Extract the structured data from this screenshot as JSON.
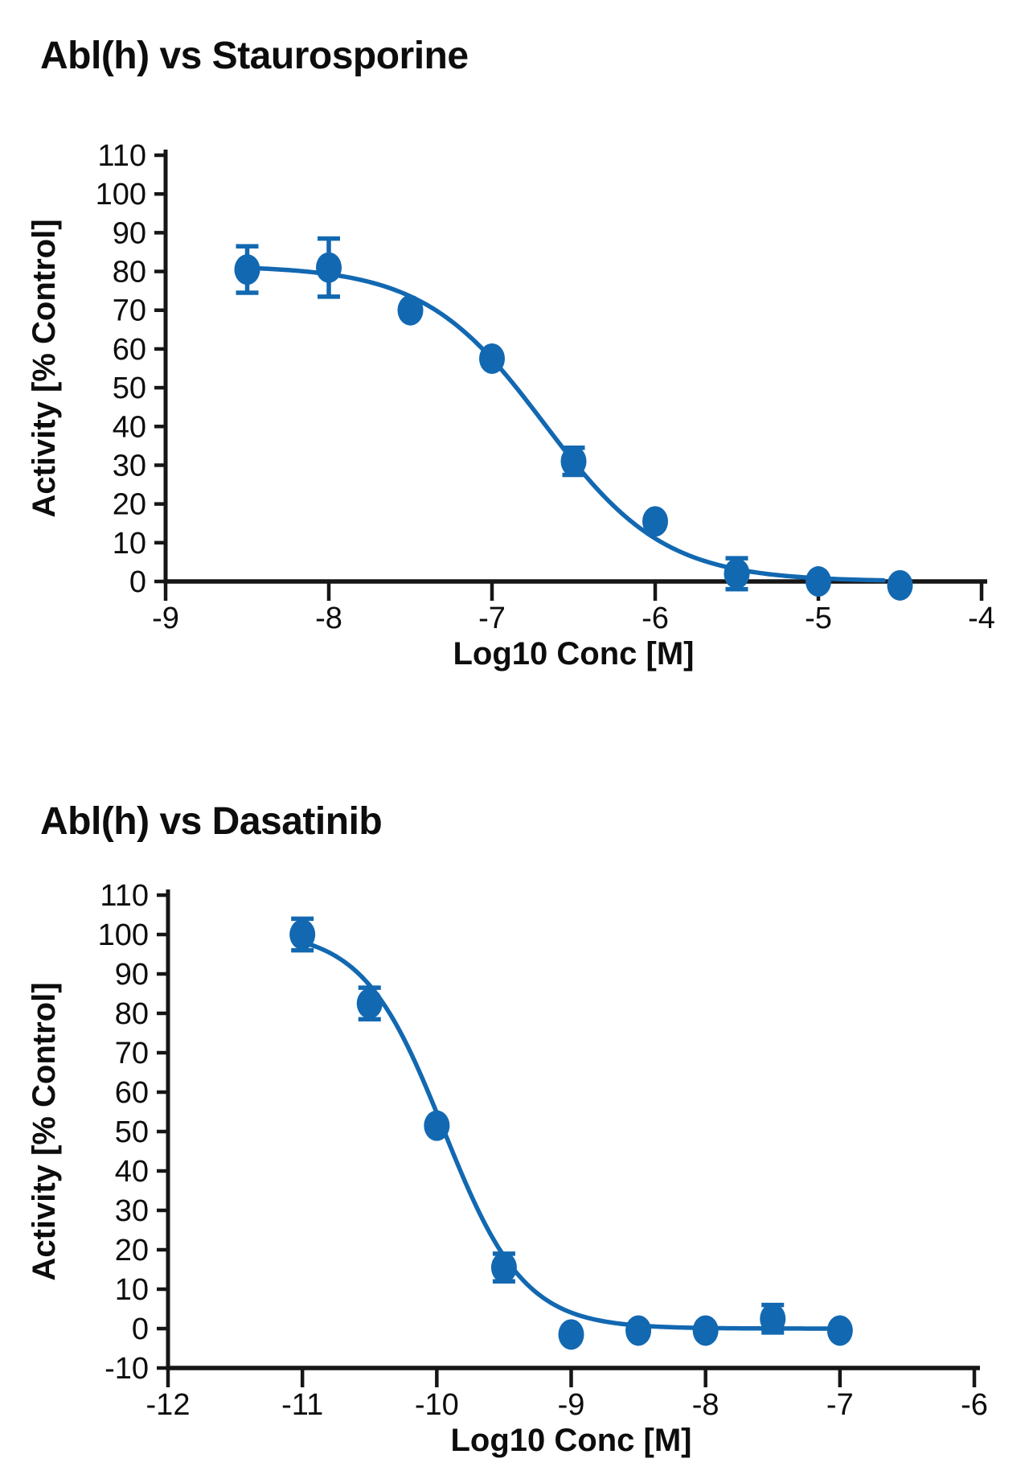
{
  "figure": {
    "background": "#ffffff",
    "text_color": "#0d0d0d"
  },
  "chart_data": [
    {
      "type": "scatter",
      "title": "Abl(h) vs Staurosporine",
      "xlabel": "Log10 Conc [M]",
      "ylabel": "Activity [% Control]",
      "xlim": [
        -9,
        -4
      ],
      "ylim": [
        0,
        110
      ],
      "xticks": [
        -9,
        -8,
        -7,
        -6,
        -5,
        -4
      ],
      "yticks": [
        0,
        10,
        20,
        30,
        40,
        50,
        60,
        70,
        80,
        90,
        100,
        110
      ],
      "grid": false,
      "legend": "none",
      "point_color": "#1268b1",
      "axis_color": "#161616",
      "points": [
        {
          "x": -8.5,
          "y": 80.5,
          "err": 6
        },
        {
          "x": -8.0,
          "y": 81.0,
          "err": 7.5
        },
        {
          "x": -7.5,
          "y": 70.0,
          "err": 0
        },
        {
          "x": -7.0,
          "y": 57.5,
          "err": 0
        },
        {
          "x": -6.5,
          "y": 31.0,
          "err": 3.5
        },
        {
          "x": -6.0,
          "y": 15.5,
          "err": 0
        },
        {
          "x": -5.5,
          "y": 2.0,
          "err": 4
        },
        {
          "x": -5.0,
          "y": 0.0,
          "err": 0
        },
        {
          "x": -4.5,
          "y": -1.0,
          "err": 0
        }
      ],
      "fit_curve": {
        "model": "4PL sigmoid",
        "top": 81.5,
        "bottom": 0,
        "log_ic50": -6.68,
        "hill_slope": 1.18,
        "x_start": -8.5,
        "x_end": -4.6
      }
    },
    {
      "type": "scatter",
      "title": "Abl(h) vs Dasatinib",
      "xlabel": "Log10 Conc [M]",
      "ylabel": "Activity [% Control]",
      "xlim": [
        -12,
        -6
      ],
      "ylim": [
        -10,
        110
      ],
      "xticks": [
        -12,
        -11,
        -10,
        -9,
        -8,
        -7,
        -6
      ],
      "yticks": [
        -10,
        0,
        10,
        20,
        30,
        40,
        50,
        60,
        70,
        80,
        90,
        100,
        110
      ],
      "grid": false,
      "legend": "none",
      "point_color": "#1268b1",
      "axis_color": "#161616",
      "points": [
        {
          "x": -11.0,
          "y": 100.0,
          "err": 4
        },
        {
          "x": -10.5,
          "y": 82.5,
          "err": 4
        },
        {
          "x": -10.0,
          "y": 51.5,
          "err": 0
        },
        {
          "x": -9.5,
          "y": 15.5,
          "err": 3.5
        },
        {
          "x": -9.0,
          "y": -1.5,
          "err": 0
        },
        {
          "x": -8.5,
          "y": -0.5,
          "err": 0
        },
        {
          "x": -8.0,
          "y": -0.5,
          "err": 0
        },
        {
          "x": -7.5,
          "y": 2.5,
          "err": 3.5
        },
        {
          "x": -7.0,
          "y": -0.5,
          "err": 0
        }
      ],
      "fit_curve": {
        "model": "4PL sigmoid",
        "top": 101,
        "bottom": 0,
        "log_ic50": -9.95,
        "hill_slope": 1.45,
        "x_start": -11,
        "x_end": -7
      }
    }
  ]
}
